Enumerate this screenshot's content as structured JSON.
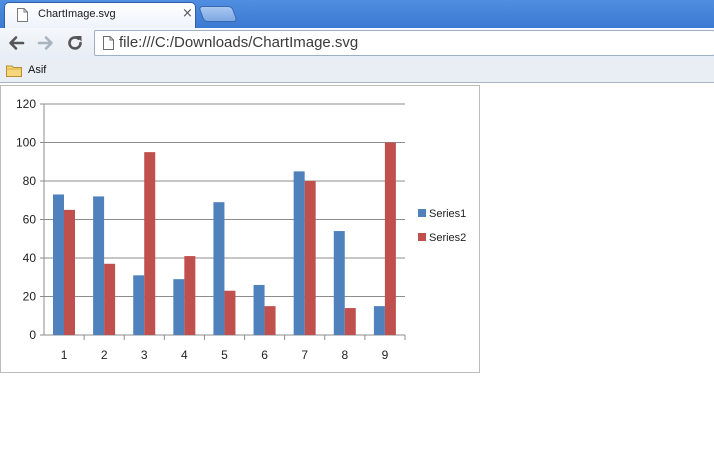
{
  "browser": {
    "tab_title": "ChartImage.svg",
    "tab_close": "×",
    "address_url": "file:///C:/Downloads/ChartImage.svg",
    "bookmark_folder": "Asif"
  },
  "colors": {
    "series1": "#4f81bd",
    "series2": "#c0504d",
    "grid": "#8c8c8c"
  },
  "chart_data": {
    "type": "bar",
    "categories": [
      "1",
      "2",
      "3",
      "4",
      "5",
      "6",
      "7",
      "8",
      "9"
    ],
    "series": [
      {
        "name": "Series1",
        "values": [
          73,
          72,
          31,
          29,
          69,
          26,
          85,
          54,
          15
        ]
      },
      {
        "name": "Series2",
        "values": [
          65,
          37,
          95,
          41,
          23,
          15,
          80,
          14,
          100
        ]
      }
    ],
    "yticks": [
      0,
      20,
      40,
      60,
      80,
      100,
      120
    ],
    "ylim": [
      0,
      120
    ],
    "grid": true,
    "legend_position": "right"
  }
}
